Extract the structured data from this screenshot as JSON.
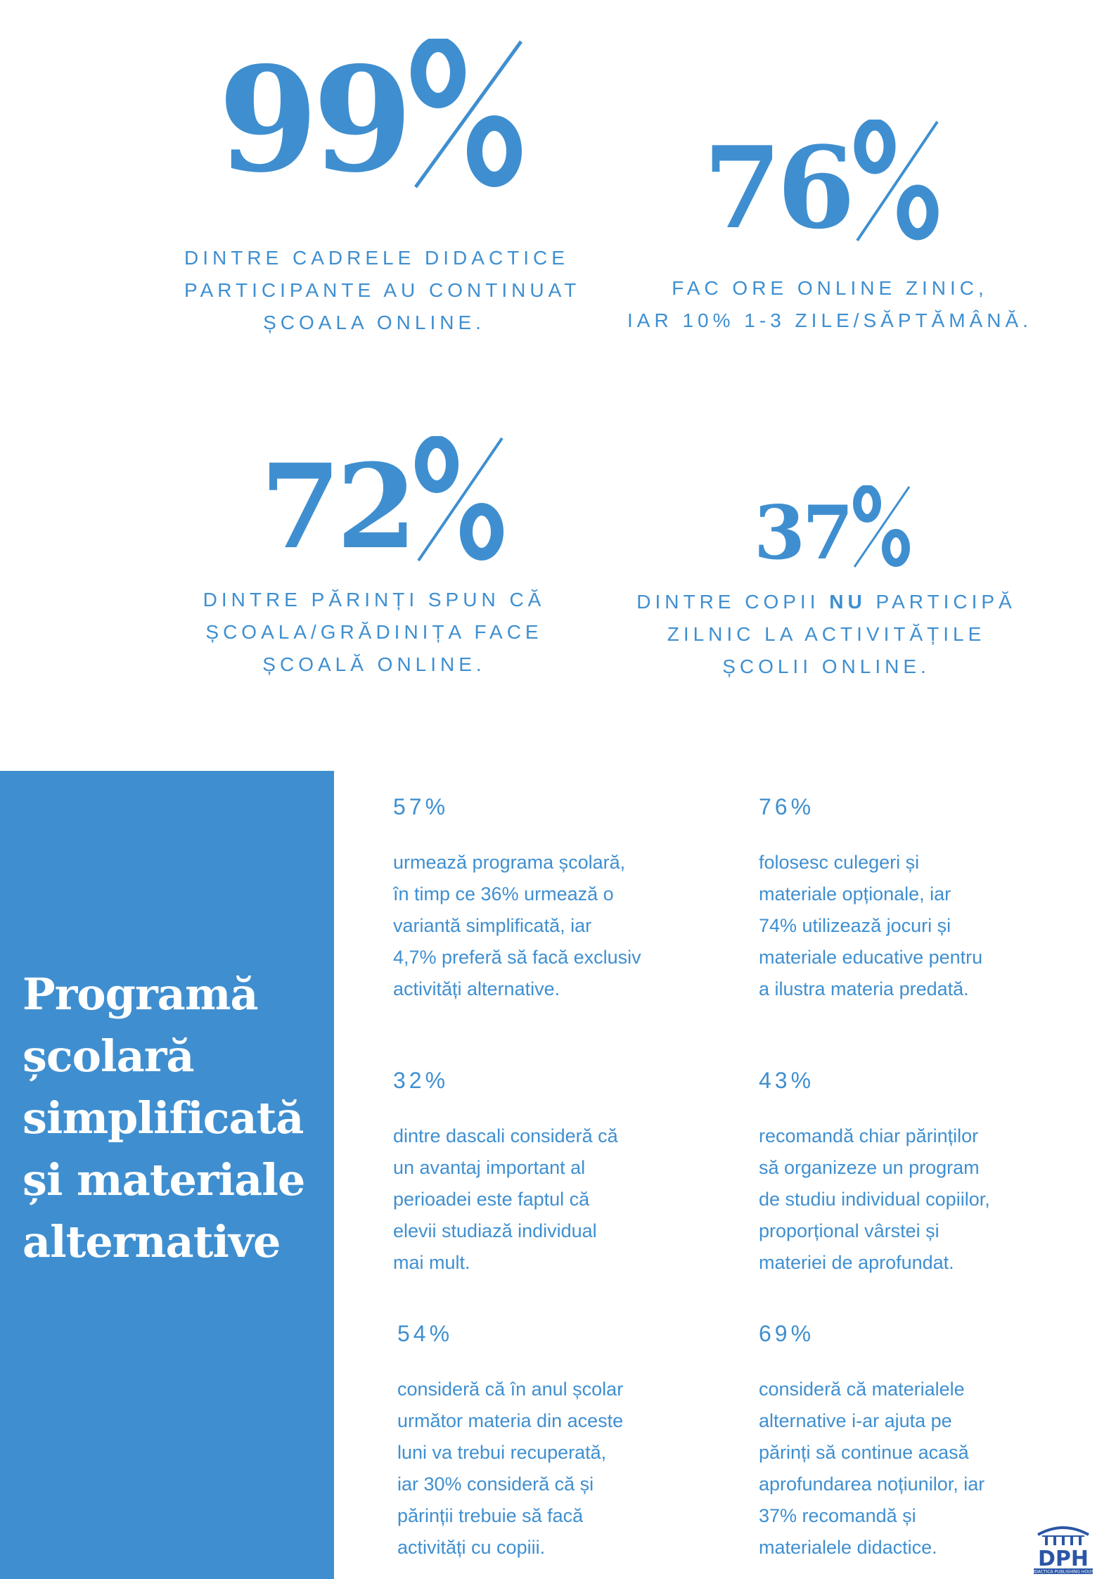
{
  "stats": [
    {
      "number": "99",
      "symbol": "%",
      "caption": [
        "DINTRE CADRELE DIDACTICE",
        "PARTICIPANTE AU CONTINUAT",
        "ȘCOALA ONLINE."
      ]
    },
    {
      "number": "76",
      "symbol": "%",
      "caption": [
        "FAC ORE ONLINE ZINIC,",
        "IAR 10% 1-3 ZILE/SĂPTĂMÂNĂ."
      ]
    },
    {
      "number": "72",
      "symbol": "%",
      "caption": [
        "DINTRE PĂRINȚI SPUN CĂ",
        "ȘCOALA/GRĂDINIȚA FACE",
        "ȘCOALĂ ONLINE."
      ]
    },
    {
      "number": "37",
      "symbol": "%",
      "caption_prefix": "DINTRE COPII",
      "caption_emphasis": "NU",
      "caption_suffix": "PARTICIPĂ",
      "caption": [
        "ZILNIC LA ACTIVITĂȚILE",
        "ȘCOLII ONLINE."
      ]
    }
  ],
  "sidebar": {
    "title_lines": [
      "Programă",
      "școlară",
      "simplificată",
      "și materiale",
      "alternative"
    ]
  },
  "details": [
    {
      "pct": "57%",
      "lines": [
        "urmează programa școlară,",
        "în timp ce 36% urmează o",
        "variantă simplificată, iar",
        "4,7% preferă să facă exclusiv",
        "activități alternative."
      ]
    },
    {
      "pct": "76%",
      "lines": [
        "folosesc culegeri și",
        "materiale opționale, iar",
        "74% utilizează jocuri și",
        "materiale educative pentru",
        "a ilustra materia predată."
      ]
    },
    {
      "pct": "32%",
      "lines": [
        "dintre dascali consideră că",
        "un avantaj important al",
        "perioadei este faptul că",
        "elevii studiază individual",
        "mai mult."
      ]
    },
    {
      "pct": "43%",
      "lines": [
        "recomandă chiar părinților",
        "să organizeze un program",
        "de studiu individual copiilor,",
        "proporțional vârstei și",
        "materiei de aprofundat."
      ]
    },
    {
      "pct": "54%",
      "lines": [
        "consideră că în anul școlar",
        "următor materia din aceste",
        "luni va trebui recuperată,",
        "iar 30% consideră că și",
        "părinții trebuie să facă",
        "activități cu copiii."
      ]
    },
    {
      "pct": "69%",
      "lines": [
        "consideră că materialele",
        "alternative i-ar ajuta pe",
        "părinți să continue acasă",
        "aprofundarea noțiunilor, iar",
        "37% recomandă și",
        "materialele didactice."
      ]
    }
  ],
  "logo": {
    "mark": "DPH",
    "tagline": "DIDACTICA PUBLISHING HOUSE",
    "color": "#2b56a6"
  },
  "colors": {
    "accent": "#3f8fd0",
    "background": "#ffffff"
  }
}
